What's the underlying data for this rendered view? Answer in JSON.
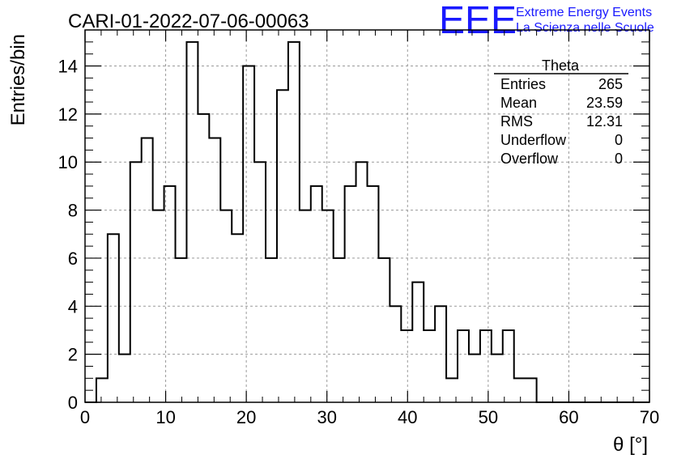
{
  "chart_data": {
    "type": "histogram",
    "title": "CARI-01-2022-07-06-00063",
    "xlabel": "θ [°]",
    "ylabel": "Entries/bin",
    "xlim": [
      0,
      70
    ],
    "ylim": [
      0,
      15.5
    ],
    "grid": true,
    "bin_width": 1.4,
    "bin_edges_start": 0,
    "counts": [
      0,
      1,
      7,
      2,
      10,
      11,
      8,
      9,
      6,
      15,
      12,
      11,
      8,
      7,
      14,
      10,
      6,
      13,
      15,
      8,
      9,
      8,
      6,
      9,
      10,
      9,
      6,
      4,
      3,
      5,
      3,
      4,
      1,
      3,
      2,
      3,
      2,
      3,
      1,
      1,
      0,
      0,
      0,
      0,
      0,
      0,
      0,
      0,
      0,
      0
    ],
    "x_ticks": [
      "0",
      "10",
      "20",
      "30",
      "40",
      "50",
      "60",
      "70"
    ],
    "y_ticks": [
      "0",
      "2",
      "4",
      "6",
      "8",
      "10",
      "12",
      "14"
    ],
    "stats_box": {
      "title": "Theta",
      "rows": [
        {
          "label": "Entries",
          "value": "265"
        },
        {
          "label": "Mean",
          "value": "23.59"
        },
        {
          "label": "RMS",
          "value": "12.31"
        },
        {
          "label": "Underflow",
          "value": "0"
        },
        {
          "label": "Overflow",
          "value": "0"
        }
      ]
    }
  },
  "logo": {
    "text": "EEE",
    "line1": "Extreme Energy Events",
    "line2": "La Scienza nelle Scuole",
    "color": "#1a1aff"
  }
}
